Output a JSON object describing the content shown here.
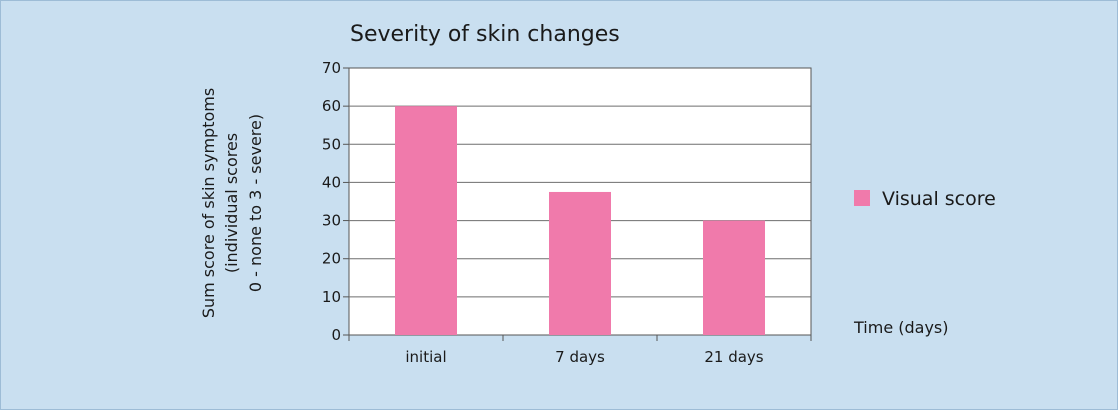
{
  "chart_data": {
    "type": "bar",
    "title": "Severity of skin changes",
    "categories": [
      "initial",
      "7 days",
      "21 days"
    ],
    "series": [
      {
        "name": "Visual score",
        "values": [
          60,
          37.5,
          30
        ],
        "color": "#f07aab"
      }
    ],
    "ylabel_lines": [
      "Sum score of skin symptoms",
      "(individual scores",
      "0 - none to 3 - severe)"
    ],
    "xlabel": "Time (days)",
    "ylim": [
      0,
      70
    ],
    "yticks": [
      0,
      10,
      20,
      30,
      40,
      50,
      60,
      70
    ],
    "grid": true,
    "legend_position": "right"
  }
}
